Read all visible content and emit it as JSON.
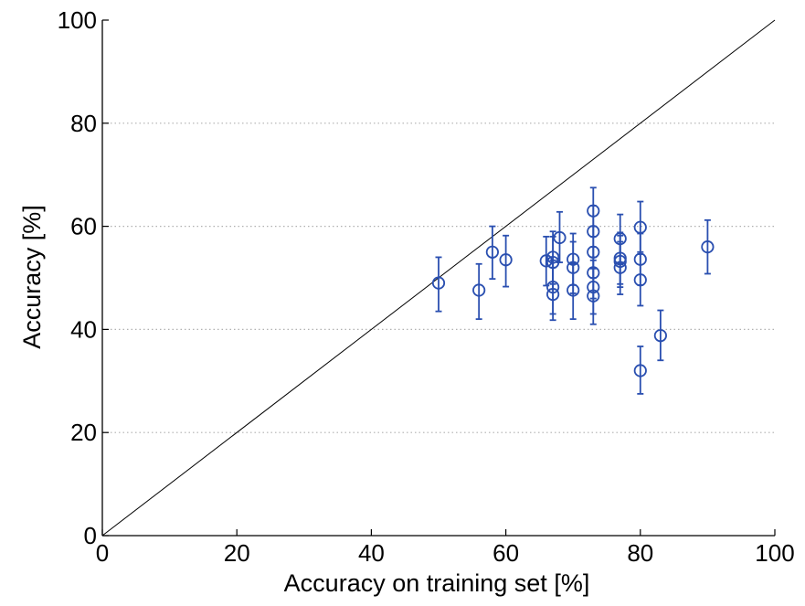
{
  "chart_data": {
    "type": "scatter",
    "title": "",
    "xlabel": "Accuracy on training set [%]",
    "ylabel": "Accuracy [%]",
    "xlim": [
      0,
      100
    ],
    "ylim": [
      0,
      100
    ],
    "xticks": [
      "0",
      "20",
      "40",
      "60",
      "80",
      "100"
    ],
    "yticks": [
      "0",
      "20",
      "40",
      "60",
      "80",
      "100"
    ],
    "grid": "horizontal dotted lines at y ticks",
    "reference_line": {
      "from": [
        0,
        0
      ],
      "to": [
        100,
        100
      ]
    },
    "marker": "open circle with vertical error bars",
    "colors": {
      "points": "#2a4fb0",
      "reference_line": "#000000",
      "grid": "#b0b0b0"
    },
    "points": [
      {
        "x": 50,
        "y": 49.0,
        "err_low": 43.5,
        "err_high": 54.0
      },
      {
        "x": 56,
        "y": 47.6,
        "err_low": 42.0,
        "err_high": 52.7
      },
      {
        "x": 58,
        "y": 55.0,
        "err_low": 49.8,
        "err_high": 60.0
      },
      {
        "x": 60,
        "y": 53.5,
        "err_low": 48.3,
        "err_high": 58.2
      },
      {
        "x": 66,
        "y": 53.3,
        "err_low": 48.5,
        "err_high": 58.0
      },
      {
        "x": 67,
        "y": 54.0,
        "err_low": 48.8,
        "err_high": 59.0
      },
      {
        "x": 67,
        "y": 53.0,
        "err_low": 47.8,
        "err_high": 58.0
      },
      {
        "x": 67,
        "y": 48.2,
        "err_low": 43.0,
        "err_high": 53.4
      },
      {
        "x": 67,
        "y": 46.8,
        "err_low": 41.8,
        "err_high": 52.0
      },
      {
        "x": 68,
        "y": 57.8,
        "err_low": 53.0,
        "err_high": 62.8
      },
      {
        "x": 70,
        "y": 53.6,
        "err_low": 48.6,
        "err_high": 58.6
      },
      {
        "x": 70,
        "y": 52.0,
        "err_low": 47.0,
        "err_high": 57.0
      },
      {
        "x": 70,
        "y": 47.6,
        "err_low": 42.0,
        "err_high": 52.8
      },
      {
        "x": 73,
        "y": 63.0,
        "err_low": 58.0,
        "err_high": 67.5
      },
      {
        "x": 73,
        "y": 59.0,
        "err_low": 54.0,
        "err_high": 64.0
      },
      {
        "x": 73,
        "y": 55.0,
        "err_low": 50.0,
        "err_high": 60.0
      },
      {
        "x": 73,
        "y": 51.0,
        "err_low": 46.0,
        "err_high": 56.0
      },
      {
        "x": 73,
        "y": 48.2,
        "err_low": 43.0,
        "err_high": 53.4
      },
      {
        "x": 73,
        "y": 46.5,
        "err_low": 41.0,
        "err_high": 51.8
      },
      {
        "x": 77,
        "y": 57.6,
        "err_low": 52.6,
        "err_high": 62.3
      },
      {
        "x": 77,
        "y": 53.8,
        "err_low": 48.8,
        "err_high": 58.8
      },
      {
        "x": 77,
        "y": 53.2,
        "err_low": 48.2,
        "err_high": 58.2
      },
      {
        "x": 77,
        "y": 52.0,
        "err_low": 46.8,
        "err_high": 57.0
      },
      {
        "x": 80,
        "y": 59.8,
        "err_low": 55.0,
        "err_high": 64.8
      },
      {
        "x": 80,
        "y": 53.6,
        "err_low": 48.6,
        "err_high": 58.6
      },
      {
        "x": 80,
        "y": 49.6,
        "err_low": 44.6,
        "err_high": 54.6
      },
      {
        "x": 80,
        "y": 32.0,
        "err_low": 27.5,
        "err_high": 36.7
      },
      {
        "x": 83,
        "y": 38.8,
        "err_low": 34.0,
        "err_high": 43.7
      },
      {
        "x": 90,
        "y": 56.0,
        "err_low": 50.8,
        "err_high": 61.2
      }
    ]
  }
}
